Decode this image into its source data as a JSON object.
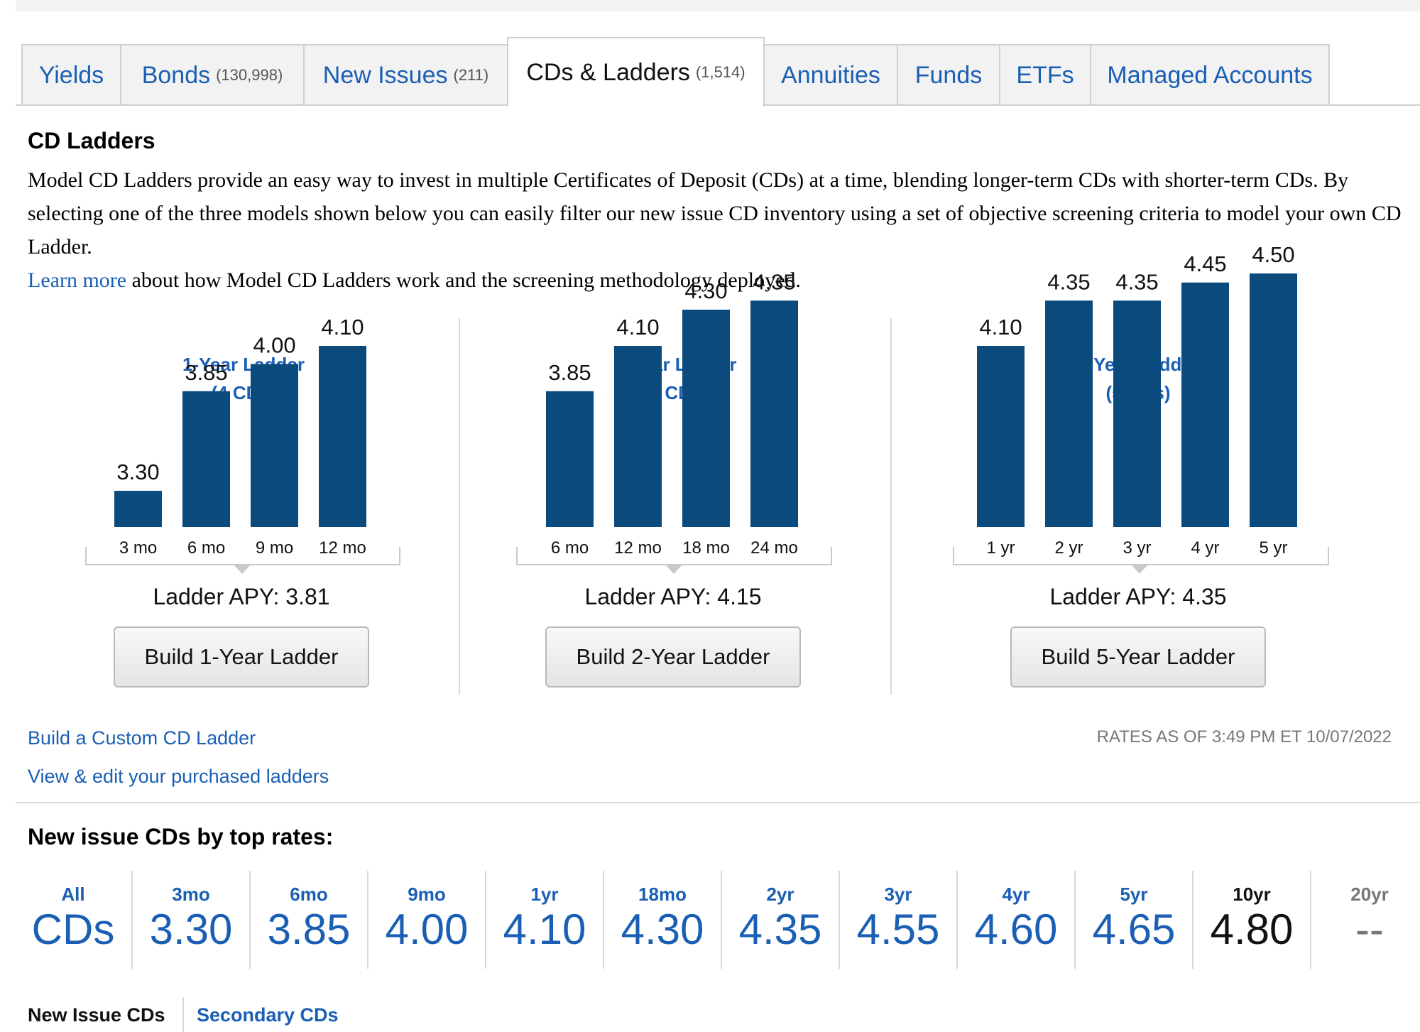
{
  "tabs": [
    {
      "label": "Yields",
      "count": ""
    },
    {
      "label": "Bonds",
      "count": "(130,998)"
    },
    {
      "label": "New Issues",
      "count": "(211)"
    },
    {
      "label": "CDs & Ladders",
      "count": "(1,514)",
      "active": true
    },
    {
      "label": "Annuities",
      "count": ""
    },
    {
      "label": "Funds",
      "count": ""
    },
    {
      "label": "ETFs",
      "count": ""
    },
    {
      "label": "Managed Accounts",
      "count": ""
    }
  ],
  "cd_ladders": {
    "heading": "CD Ladders",
    "intro": "Model CD Ladders provide an easy way to invest in multiple Certificates of Deposit (CDs) at a time, blending longer-term CDs with shorter-term CDs. By selecting one of the three models shown below you can easily filter our new issue CD inventory using a set of objective screening criteria to model your own CD Ladder.",
    "learn_more_link": "Learn more",
    "learn_more_rest": " about how Model CD Ladders work and the screening methodology deployed."
  },
  "ladders": [
    {
      "title": "1-Year Ladder",
      "subtitle": "(4 CDs)",
      "apy": "Ladder APY: 3.81",
      "button": "Build 1-Year Ladder"
    },
    {
      "title": "2-Year Ladder",
      "subtitle": "(4 CDs)",
      "apy": "Ladder APY: 4.15",
      "button": "Build 2-Year Ladder"
    },
    {
      "title": "5-Year Ladder",
      "subtitle": "(5 CDs)",
      "apy": "Ladder APY: 4.35",
      "button": "Build 5-Year Ladder"
    }
  ],
  "chart_data": [
    {
      "type": "bar",
      "title": "1-Year Ladder",
      "categories": [
        "3 mo",
        "6 mo",
        "9 mo",
        "12 mo"
      ],
      "values": [
        3.3,
        3.85,
        4.0,
        4.1
      ],
      "labels": [
        "3.30",
        "3.85",
        "4.00",
        "4.10"
      ],
      "ylim": [
        3.1,
        4.55
      ],
      "color": "#0b4a7d"
    },
    {
      "type": "bar",
      "title": "2-Year Ladder",
      "categories": [
        "6 mo",
        "12 mo",
        "18 mo",
        "24 mo"
      ],
      "values": [
        3.85,
        4.1,
        4.3,
        4.35
      ],
      "labels": [
        "3.85",
        "4.10",
        "4.30",
        "4.35"
      ],
      "ylim": [
        3.1,
        4.55
      ],
      "color": "#0b4a7d"
    },
    {
      "type": "bar",
      "title": "5-Year Ladder",
      "categories": [
        "1 yr",
        "2 yr",
        "3 yr",
        "4 yr",
        "5 yr"
      ],
      "values": [
        4.1,
        4.35,
        4.35,
        4.45,
        4.5
      ],
      "labels": [
        "4.10",
        "4.35",
        "4.35",
        "4.45",
        "4.50"
      ],
      "ylim": [
        3.1,
        4.55
      ],
      "color": "#0b4a7d"
    }
  ],
  "links": {
    "custom_ladder": "Build a Custom CD Ladder",
    "view_purchased": "View & edit your purchased ladders"
  },
  "rates_as_of": "RATES AS OF 3:49 PM ET 10/07/2022",
  "top_rates": {
    "heading": "New issue CDs by top rates:",
    "terms": [
      {
        "label": "All",
        "value": "CDs"
      },
      {
        "label": "3mo",
        "value": "3.30"
      },
      {
        "label": "6mo",
        "value": "3.85"
      },
      {
        "label": "9mo",
        "value": "4.00"
      },
      {
        "label": "1yr",
        "value": "4.10"
      },
      {
        "label": "18mo",
        "value": "4.30"
      },
      {
        "label": "2yr",
        "value": "4.35"
      },
      {
        "label": "3yr",
        "value": "4.55"
      },
      {
        "label": "4yr",
        "value": "4.60"
      },
      {
        "label": "5yr",
        "value": "4.65"
      },
      {
        "label": "10yr",
        "value": "4.80",
        "selected": true
      },
      {
        "label": "20yr",
        "value": "--",
        "na": true
      }
    ]
  },
  "subtabs": {
    "new_issue": "New Issue CDs",
    "secondary": "Secondary CDs"
  },
  "colors": {
    "link": "#1a5fb4",
    "bar": "#0b4a7d",
    "muted": "#777777"
  }
}
